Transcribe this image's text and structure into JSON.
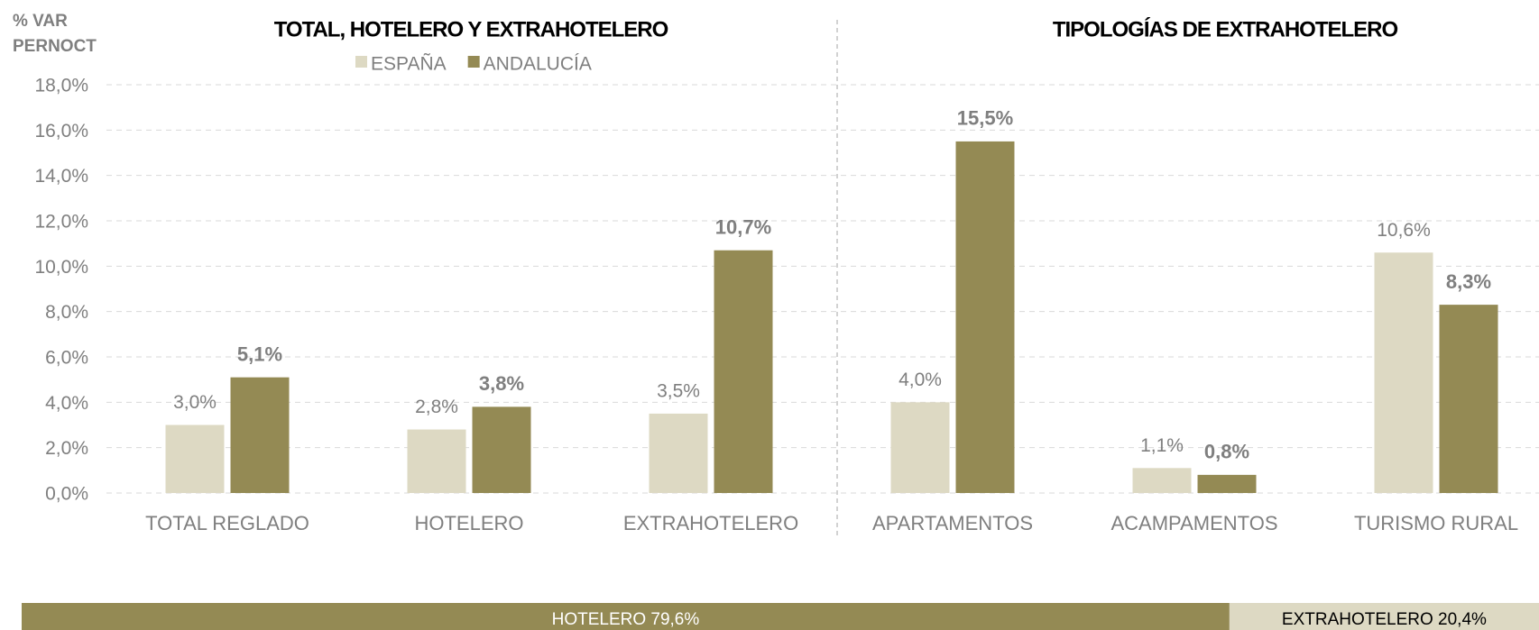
{
  "chart_data": {
    "type": "bar",
    "y_label_lines": [
      "% VAR",
      "PERNOCT"
    ],
    "section_titles": [
      "TOTAL, HOTELERO Y EXTRAHOTELERO",
      "TIPOLOGÍAS DE EXTRAHOTELERO"
    ],
    "categories": [
      "TOTAL REGLADO",
      "HOTELERO",
      "EXTRAHOTELERO",
      "APARTAMENTOS",
      "ACAMPAMENTOS",
      "TURISMO RURAL"
    ],
    "series": [
      {
        "name": "ESPAÑA",
        "color": "#ddd9c3",
        "values": [
          3.0,
          2.8,
          3.5,
          4.0,
          1.1,
          10.6
        ],
        "value_labels": [
          "3,0%",
          "2,8%",
          "3,5%",
          "4,0%",
          "1,1%",
          "10,6%"
        ]
      },
      {
        "name": "ANDALUCÍA",
        "color": "#948a54",
        "values": [
          5.1,
          3.8,
          10.7,
          15.5,
          0.8,
          8.3
        ],
        "value_labels": [
          "5,1%",
          "3,8%",
          "10,7%",
          "15,5%",
          "0,8%",
          "8,3%"
        ]
      }
    ],
    "ylim": [
      0,
      18
    ],
    "yticks": [
      {
        "value": 0,
        "label": "0,0%"
      },
      {
        "value": 2,
        "label": "2,0%"
      },
      {
        "value": 4,
        "label": "4,0%"
      },
      {
        "value": 6,
        "label": "6,0%"
      },
      {
        "value": 8,
        "label": "8,0%"
      },
      {
        "value": 10,
        "label": "10,0%"
      },
      {
        "value": 12,
        "label": "12,0%"
      },
      {
        "value": 14,
        "label": "14,0%"
      },
      {
        "value": 16,
        "label": "16,0%"
      },
      {
        "value": 18,
        "label": "18,0%"
      }
    ],
    "grid": true,
    "share_bar": [
      {
        "label": "HOTELERO 79,6%",
        "value": 79.6,
        "color": "#948a54",
        "text_color": "#ffffff"
      },
      {
        "label": "EXTRAHOTELERO 20,4%",
        "value": 20.4,
        "color": "#ddd9c3",
        "text_color": "#000000"
      }
    ]
  }
}
